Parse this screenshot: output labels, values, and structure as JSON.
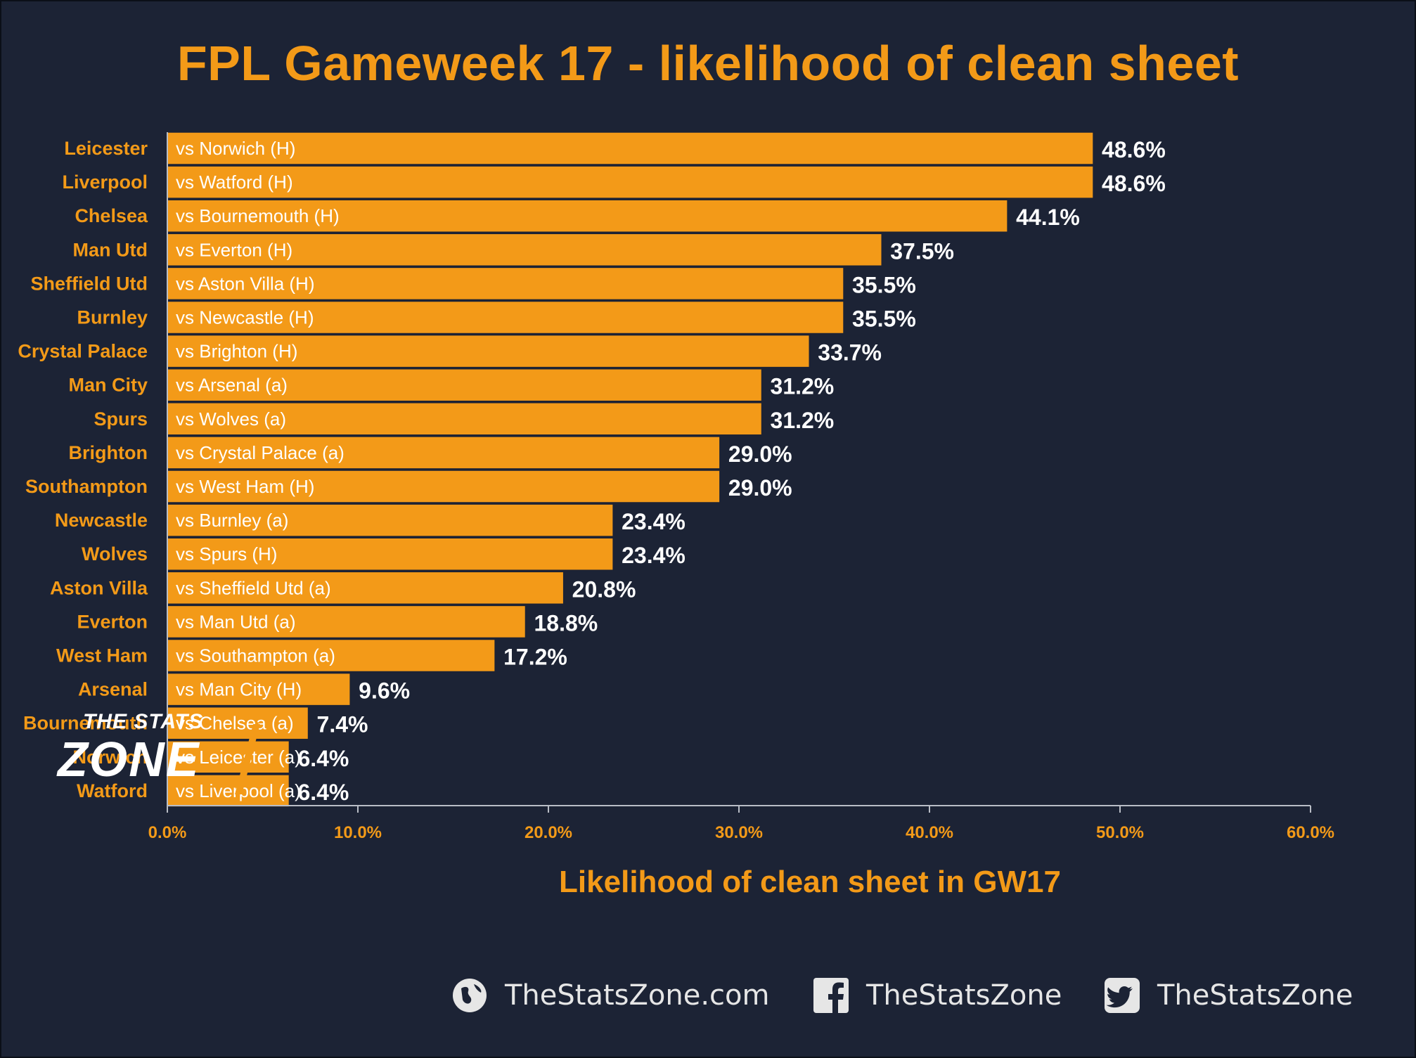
{
  "title": "FPL Gameweek 17 - likelihood of clean sheet",
  "chart_data": {
    "type": "bar",
    "orientation": "horizontal",
    "title": "FPL Gameweek 17 - likelihood of clean sheet",
    "xlabel": "Likelihood of clean sheet in GW17",
    "ylabel": "",
    "xlim": [
      0,
      60
    ],
    "x_ticks": [
      "0.0%",
      "10.0%",
      "20.0%",
      "30.0%",
      "40.0%",
      "50.0%",
      "60.0%"
    ],
    "grid": false,
    "categories": [
      "Leicester",
      "Liverpool",
      "Chelsea",
      "Man Utd",
      "Sheffield Utd",
      "Burnley",
      "Crystal Palace",
      "Man City",
      "Spurs",
      "Brighton",
      "Southampton",
      "Newcastle",
      "Wolves",
      "Aston Villa",
      "Everton",
      "West Ham",
      "Arsenal",
      "Bournemouth",
      "Norwich",
      "Watford"
    ],
    "fixtures": [
      "vs Norwich (H)",
      "vs Watford (H)",
      "vs Bournemouth (H)",
      "vs Everton (H)",
      "vs Aston Villa (H)",
      "vs Newcastle (H)",
      "vs Brighton (H)",
      "vs Arsenal (a)",
      "vs Wolves (a)",
      "vs Crystal Palace (a)",
      "vs West Ham (H)",
      "vs Burnley (a)",
      "vs Spurs (H)",
      "vs Sheffield Utd (a)",
      "vs Man Utd (a)",
      "vs Southampton (a)",
      "vs Man City (H)",
      "vs Chelsea (a)",
      "vs Leicester (a)",
      "vs Liverpool (a)"
    ],
    "values": [
      48.6,
      48.6,
      44.1,
      37.5,
      35.5,
      35.5,
      33.7,
      31.2,
      31.2,
      29.0,
      29.0,
      23.4,
      23.4,
      20.8,
      18.8,
      17.2,
      9.6,
      7.4,
      6.4,
      6.4
    ],
    "value_labels": [
      "48.6%",
      "48.6%",
      "44.1%",
      "37.5%",
      "35.5%",
      "35.5%",
      "33.7%",
      "31.2%",
      "31.2%",
      "29.0%",
      "29.0%",
      "23.4%",
      "23.4%",
      "20.8%",
      "18.8%",
      "17.2%",
      "9.6%",
      "7.4%",
      "6.4%",
      "6.4%"
    ],
    "colors": {
      "bar": "#f39a18",
      "background": "#1c2335",
      "accent": "#f39a18",
      "value_text": "#ffffff"
    }
  },
  "logo": {
    "top": "THE STATS",
    "main": "ZONE"
  },
  "social": [
    {
      "icon": "globe-icon",
      "label": "TheStatsZone.com"
    },
    {
      "icon": "facebook-icon",
      "label": "TheStatsZone"
    },
    {
      "icon": "twitter-icon",
      "label": "TheStatsZone"
    }
  ]
}
